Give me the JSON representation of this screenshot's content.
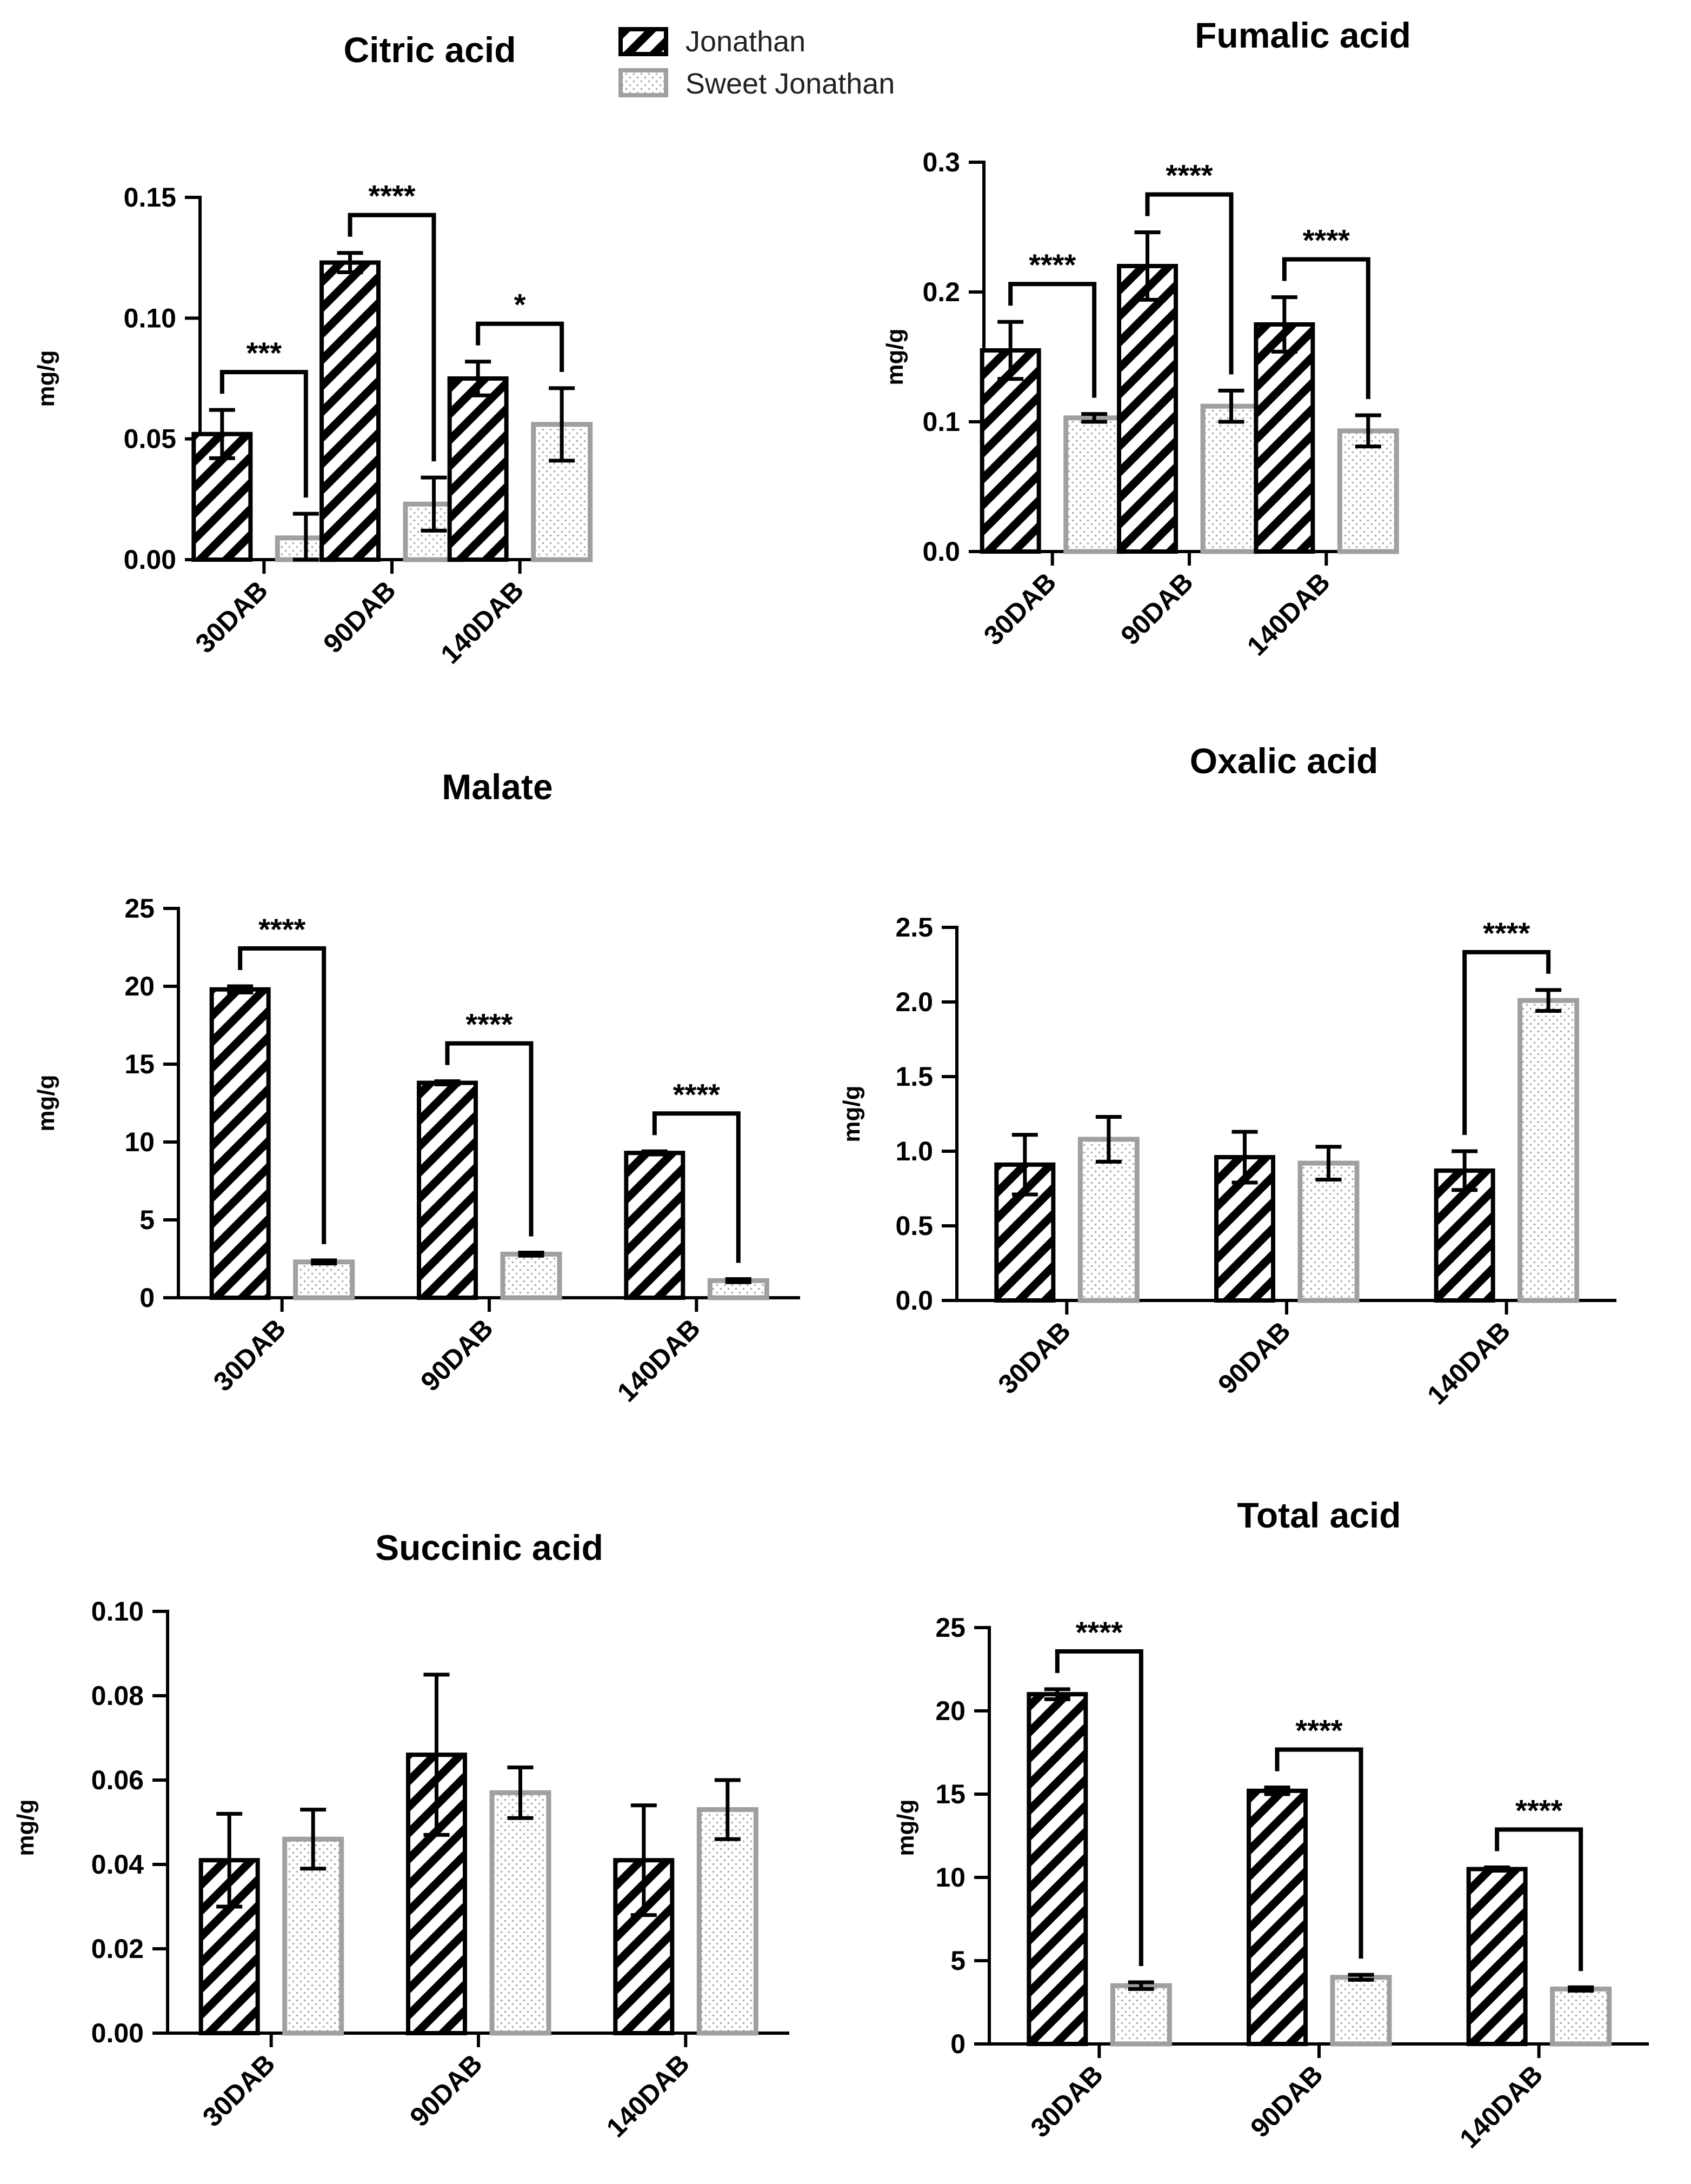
{
  "legend": {
    "series": [
      {
        "name": "Jonathan",
        "style": "hatched"
      },
      {
        "name": "Sweet Jonathan",
        "style": "dotted"
      }
    ],
    "colors": {
      "Jonathan": "#000000",
      "Sweet Jonathan": "#9e9e9e"
    }
  },
  "chart_data": [
    {
      "type": "bar",
      "title": "Citric acid",
      "ylabel": "mg/g",
      "xlabel": "",
      "categories": [
        "30DAB",
        "90DAB",
        "140DAB"
      ],
      "ylim": [
        0,
        0.15
      ],
      "yticks": [
        "0.00",
        "0.05",
        "0.10",
        "0.15"
      ],
      "series": [
        {
          "name": "Jonathan",
          "values": [
            0.052,
            0.123,
            0.075
          ],
          "errors": [
            0.01,
            0.004,
            0.007
          ]
        },
        {
          "name": "Sweet Jonathan",
          "values": [
            0.009,
            0.023,
            0.056
          ],
          "errors": [
            0.01,
            0.011,
            0.015
          ]
        }
      ],
      "significance": [
        "***",
        "****",
        "*"
      ]
    },
    {
      "type": "bar",
      "title": "Fumalic acid",
      "ylabel": "mg/g",
      "xlabel": "",
      "categories": [
        "30DAB",
        "90DAB",
        "140DAB"
      ],
      "ylim": [
        0,
        0.3
      ],
      "yticks": [
        "0.0",
        "0.1",
        "0.2",
        "0.3"
      ],
      "series": [
        {
          "name": "Jonathan",
          "values": [
            0.155,
            0.22,
            0.175
          ],
          "errors": [
            0.022,
            0.026,
            0.021
          ]
        },
        {
          "name": "Sweet Jonathan",
          "values": [
            0.103,
            0.112,
            0.093
          ],
          "errors": [
            0.003,
            0.012,
            0.012
          ]
        }
      ],
      "significance": [
        "****",
        "****",
        "****"
      ]
    },
    {
      "type": "bar",
      "title": "Malate",
      "ylabel": "mg/g",
      "xlabel": "",
      "categories": [
        "30DAB",
        "90DAB",
        "140DAB"
      ],
      "ylim": [
        0,
        25
      ],
      "yticks": [
        "0",
        "5",
        "10",
        "15",
        "20",
        "25"
      ],
      "series": [
        {
          "name": "Jonathan",
          "values": [
            19.8,
            13.8,
            9.3
          ],
          "errors": [
            0.2,
            0.1,
            0.1
          ]
        },
        {
          "name": "Sweet Jonathan",
          "values": [
            2.3,
            2.8,
            1.1
          ],
          "errors": [
            0.1,
            0.1,
            0.1
          ]
        }
      ],
      "significance": [
        "****",
        "****",
        "****"
      ]
    },
    {
      "type": "bar",
      "title": "Oxalic acid",
      "ylabel": "mg/g",
      "xlabel": "",
      "categories": [
        "30DAB",
        "90DAB",
        "140DAB"
      ],
      "ylim": [
        0,
        2.5
      ],
      "yticks": [
        "0.0",
        "0.5",
        "1.0",
        "1.5",
        "2.0",
        "2.5"
      ],
      "series": [
        {
          "name": "Jonathan",
          "values": [
            0.91,
            0.96,
            0.87
          ],
          "errors": [
            0.2,
            0.17,
            0.13
          ]
        },
        {
          "name": "Sweet Jonathan",
          "values": [
            1.08,
            0.92,
            2.01
          ],
          "errors": [
            0.15,
            0.11,
            0.07
          ]
        }
      ],
      "significance": [
        "",
        "",
        "****"
      ]
    },
    {
      "type": "bar",
      "title": "Succinic acid",
      "ylabel": "mg/g",
      "xlabel": "",
      "categories": [
        "30DAB",
        "90DAB",
        "140DAB"
      ],
      "ylim": [
        0,
        0.1
      ],
      "yticks": [
        "0.00",
        "0.02",
        "0.04",
        "0.06",
        "0.08",
        "0.10"
      ],
      "series": [
        {
          "name": "Jonathan",
          "values": [
            0.041,
            0.066,
            0.041
          ],
          "errors": [
            0.011,
            0.019,
            0.013
          ]
        },
        {
          "name": "Sweet Jonathan",
          "values": [
            0.046,
            0.057,
            0.053
          ],
          "errors": [
            0.007,
            0.006,
            0.007
          ]
        }
      ],
      "significance": [
        "",
        "",
        ""
      ]
    },
    {
      "type": "bar",
      "title": "Total acid",
      "ylabel": "mg/g",
      "xlabel": "",
      "categories": [
        "30DAB",
        "90DAB",
        "140DAB"
      ],
      "ylim": [
        0,
        25
      ],
      "yticks": [
        "0",
        "5",
        "10",
        "15",
        "20",
        "25"
      ],
      "series": [
        {
          "name": "Jonathan",
          "values": [
            21.0,
            15.2,
            10.5
          ],
          "errors": [
            0.3,
            0.2,
            0.1
          ]
        },
        {
          "name": "Sweet Jonathan",
          "values": [
            3.5,
            4.0,
            3.3
          ],
          "errors": [
            0.2,
            0.15,
            0.1
          ]
        }
      ],
      "significance": [
        "****",
        "****",
        "****"
      ]
    }
  ]
}
